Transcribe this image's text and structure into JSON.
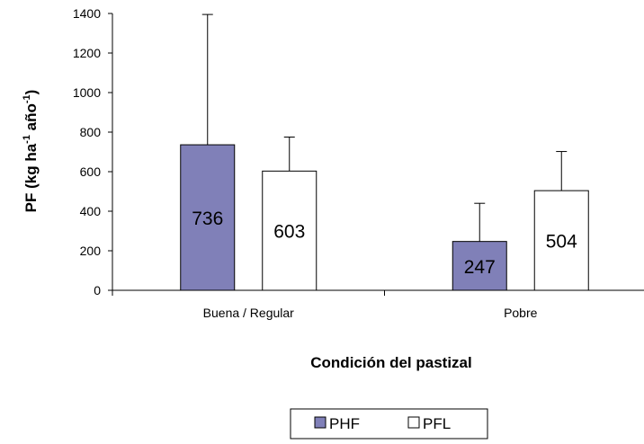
{
  "chart_data": {
    "type": "bar",
    "categories": [
      "Buena / Regular",
      "Pobre"
    ],
    "series": [
      {
        "name": "PHF",
        "values": [
          736,
          247
        ],
        "error_top": [
          1395,
          440
        ],
        "color": "#8080b8"
      },
      {
        "name": "PFL",
        "values": [
          603,
          504
        ],
        "error_top": [
          775,
          702
        ],
        "color": "#ffffff"
      }
    ],
    "data_labels": [
      [
        "736",
        "247"
      ],
      [
        "603",
        "504"
      ]
    ],
    "ylabel_main": "PF (kg ha",
    "ylabel_sup1": "-1",
    "ylabel_mid": " año",
    "ylabel_sup2": "-1",
    "ylabel_end": ")",
    "xlabel": "Condición del pastizal",
    "ylim": [
      0,
      1400
    ],
    "yticks": [
      0,
      200,
      400,
      600,
      800,
      1000,
      1200,
      1400
    ],
    "legend_position": "bottom-center",
    "grid": false
  }
}
